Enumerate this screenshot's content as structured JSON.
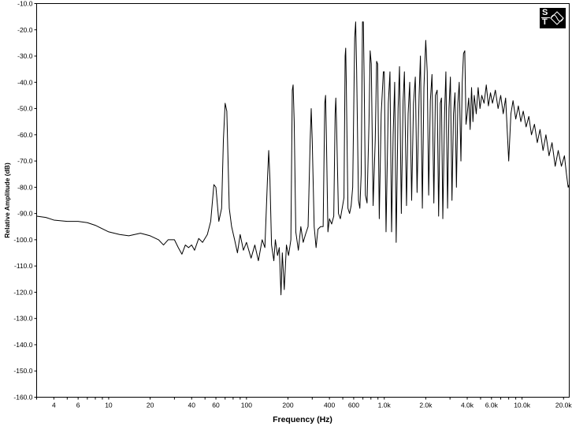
{
  "logo": {
    "top_letter": "S",
    "bottom_letter": "T",
    "icon": "sine-wave-triangle-icon"
  },
  "chart_data": {
    "type": "line",
    "title": "",
    "xlabel": "Frequency (Hz)",
    "ylabel": "Relative Amplitude (dB)",
    "xscale": "log",
    "xlim": [
      3,
      22000
    ],
    "ylim": [
      -160,
      -10
    ],
    "grid": false,
    "y_ticks": [
      -10,
      -20,
      -30,
      -40,
      -50,
      -60,
      -70,
      -80,
      -90,
      -100,
      -110,
      -120,
      -130,
      -140,
      -150,
      -160
    ],
    "y_tick_labels": [
      "-10.0",
      "-20.0",
      "-30.0",
      "-40.0",
      "-50.0",
      "-60.0",
      "-70.0",
      "-80.0",
      "-90.0",
      "-100.0",
      "-110.0",
      "-120.0",
      "-130.0",
      "-140.0",
      "-150.0",
      "-160.0"
    ],
    "x_ticks": [
      4,
      6,
      10,
      20,
      40,
      60,
      100,
      200,
      400,
      600,
      1000,
      2000,
      4000,
      6000,
      10000,
      20000
    ],
    "x_tick_labels": [
      "4",
      "6",
      "10",
      "20",
      "40",
      "60",
      "100",
      "200",
      "400",
      "600",
      "1.0k",
      "2.0k",
      "4.0k",
      "6.0k",
      "10.0k",
      "20.0k"
    ],
    "series": [
      {
        "line_color": "#000000",
        "points": [
          [
            3,
            -91
          ],
          [
            3.5,
            -91.5
          ],
          [
            4,
            -92.5
          ],
          [
            5,
            -93
          ],
          [
            6,
            -93
          ],
          [
            7,
            -93.5
          ],
          [
            8,
            -94.5
          ],
          [
            10,
            -97
          ],
          [
            12,
            -98
          ],
          [
            14,
            -98.5
          ],
          [
            17,
            -97.5
          ],
          [
            20,
            -98.5
          ],
          [
            23,
            -100
          ],
          [
            25,
            -102
          ],
          [
            27,
            -100
          ],
          [
            30,
            -100
          ],
          [
            32,
            -103
          ],
          [
            34,
            -105.5
          ],
          [
            36,
            -102
          ],
          [
            38,
            -103
          ],
          [
            40,
            -102
          ],
          [
            42,
            -104
          ],
          [
            45,
            -99.5
          ],
          [
            48,
            -101
          ],
          [
            52,
            -98
          ],
          [
            55,
            -93
          ],
          [
            58,
            -79
          ],
          [
            60,
            -80
          ],
          [
            63,
            -93
          ],
          [
            66,
            -88
          ],
          [
            68,
            -62
          ],
          [
            70,
            -48
          ],
          [
            72,
            -51
          ],
          [
            75,
            -88
          ],
          [
            78,
            -95
          ],
          [
            82,
            -100
          ],
          [
            86,
            -105
          ],
          [
            90,
            -98
          ],
          [
            95,
            -104
          ],
          [
            100,
            -101
          ],
          [
            108,
            -107
          ],
          [
            115,
            -102
          ],
          [
            122,
            -108
          ],
          [
            130,
            -100
          ],
          [
            136,
            -103
          ],
          [
            142,
            -77
          ],
          [
            145,
            -66
          ],
          [
            148,
            -77
          ],
          [
            152,
            -102
          ],
          [
            158,
            -108
          ],
          [
            162,
            -100
          ],
          [
            168,
            -106
          ],
          [
            173,
            -103
          ],
          [
            178,
            -121
          ],
          [
            182,
            -105
          ],
          [
            188,
            -119
          ],
          [
            195,
            -102
          ],
          [
            202,
            -106
          ],
          [
            210,
            -100
          ],
          [
            215,
            -43
          ],
          [
            218,
            -41
          ],
          [
            222,
            -55
          ],
          [
            228,
            -97
          ],
          [
            238,
            -104
          ],
          [
            248,
            -95
          ],
          [
            258,
            -101
          ],
          [
            268,
            -98
          ],
          [
            280,
            -95
          ],
          [
            290,
            -62
          ],
          [
            295,
            -50
          ],
          [
            300,
            -62
          ],
          [
            310,
            -95
          ],
          [
            320,
            -103
          ],
          [
            330,
            -96
          ],
          [
            345,
            -95
          ],
          [
            360,
            -95
          ],
          [
            370,
            -48
          ],
          [
            375,
            -45
          ],
          [
            380,
            -60
          ],
          [
            390,
            -97
          ],
          [
            400,
            -92
          ],
          [
            415,
            -94
          ],
          [
            430,
            -91
          ],
          [
            440,
            -52
          ],
          [
            445,
            -46
          ],
          [
            450,
            -55
          ],
          [
            465,
            -90
          ],
          [
            480,
            -92
          ],
          [
            495,
            -88
          ],
          [
            510,
            -84
          ],
          [
            520,
            -30
          ],
          [
            525,
            -27
          ],
          [
            530,
            -40
          ],
          [
            545,
            -88
          ],
          [
            560,
            -90
          ],
          [
            575,
            -87
          ],
          [
            590,
            -80
          ],
          [
            610,
            -23
          ],
          [
            620,
            -17
          ],
          [
            630,
            -35
          ],
          [
            650,
            -85
          ],
          [
            665,
            -88
          ],
          [
            680,
            -75
          ],
          [
            695,
            -17
          ],
          [
            705,
            -17
          ],
          [
            715,
            -40
          ],
          [
            730,
            -83
          ],
          [
            750,
            -86
          ],
          [
            775,
            -55
          ],
          [
            790,
            -28
          ],
          [
            805,
            -33
          ],
          [
            830,
            -87
          ],
          [
            860,
            -62
          ],
          [
            880,
            -32
          ],
          [
            895,
            -33
          ],
          [
            920,
            -92
          ],
          [
            950,
            -52
          ],
          [
            985,
            -36
          ],
          [
            1000,
            -36
          ],
          [
            1030,
            -97
          ],
          [
            1070,
            -48
          ],
          [
            1100,
            -36
          ],
          [
            1130,
            -97
          ],
          [
            1160,
            -60
          ],
          [
            1190,
            -40
          ],
          [
            1220,
            -101
          ],
          [
            1260,
            -50
          ],
          [
            1290,
            -34
          ],
          [
            1330,
            -90
          ],
          [
            1370,
            -47
          ],
          [
            1400,
            -36
          ],
          [
            1450,
            -87
          ],
          [
            1490,
            -52
          ],
          [
            1530,
            -40
          ],
          [
            1580,
            -85
          ],
          [
            1630,
            -48
          ],
          [
            1680,
            -38
          ],
          [
            1730,
            -82
          ],
          [
            1790,
            -45
          ],
          [
            1830,
            -30
          ],
          [
            1890,
            -88
          ],
          [
            1940,
            -42
          ],
          [
            2000,
            -24
          ],
          [
            2050,
            -36
          ],
          [
            2100,
            -83
          ],
          [
            2160,
            -47
          ],
          [
            2220,
            -37
          ],
          [
            2290,
            -86
          ],
          [
            2350,
            -45
          ],
          [
            2420,
            -43
          ],
          [
            2480,
            -91
          ],
          [
            2550,
            -48
          ],
          [
            2600,
            -46
          ],
          [
            2660,
            -92
          ],
          [
            2740,
            -52
          ],
          [
            2800,
            -36
          ],
          [
            2880,
            -88
          ],
          [
            2950,
            -50
          ],
          [
            3020,
            -38
          ],
          [
            3100,
            -85
          ],
          [
            3180,
            -52
          ],
          [
            3260,
            -44
          ],
          [
            3340,
            -80
          ],
          [
            3420,
            -48
          ],
          [
            3500,
            -40
          ],
          [
            3600,
            -70
          ],
          [
            3680,
            -40
          ],
          [
            3760,
            -29
          ],
          [
            3840,
            -28
          ],
          [
            3920,
            -56
          ],
          [
            4000,
            -52
          ],
          [
            4100,
            -46
          ],
          [
            4200,
            -58
          ],
          [
            4300,
            -42
          ],
          [
            4400,
            -55
          ],
          [
            4500,
            -45
          ],
          [
            4650,
            -52
          ],
          [
            4800,
            -42
          ],
          [
            4950,
            -50
          ],
          [
            5100,
            -45
          ],
          [
            5300,
            -48
          ],
          [
            5500,
            -41
          ],
          [
            5700,
            -49
          ],
          [
            5900,
            -44
          ],
          [
            6100,
            -48
          ],
          [
            6400,
            -43
          ],
          [
            6700,
            -50
          ],
          [
            7000,
            -45
          ],
          [
            7300,
            -52
          ],
          [
            7600,
            -46
          ],
          [
            8000,
            -70
          ],
          [
            8300,
            -52
          ],
          [
            8600,
            -47
          ],
          [
            9000,
            -54
          ],
          [
            9400,
            -49
          ],
          [
            9800,
            -55
          ],
          [
            10200,
            -51
          ],
          [
            10700,
            -57
          ],
          [
            11200,
            -53
          ],
          [
            11700,
            -60
          ],
          [
            12300,
            -56
          ],
          [
            12900,
            -63
          ],
          [
            13500,
            -58
          ],
          [
            14200,
            -66
          ],
          [
            14900,
            -60
          ],
          [
            15700,
            -68
          ],
          [
            16500,
            -63
          ],
          [
            17400,
            -72
          ],
          [
            18300,
            -66
          ],
          [
            19300,
            -72
          ],
          [
            20300,
            -68
          ],
          [
            21000,
            -75
          ],
          [
            21600,
            -80
          ],
          [
            22000,
            -79
          ]
        ]
      }
    ]
  }
}
